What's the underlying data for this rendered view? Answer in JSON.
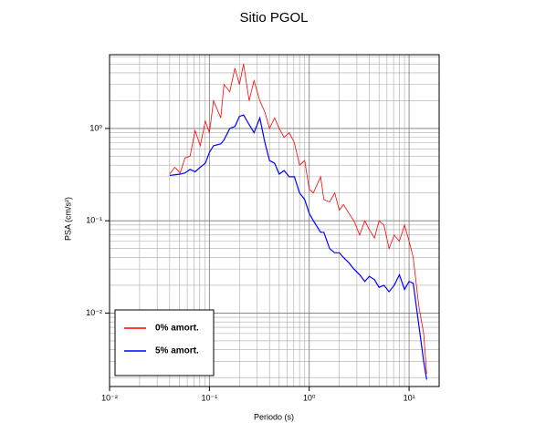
{
  "chart_data": {
    "type": "line",
    "title": "Sitio PGOL",
    "x_label": "Periodo (s)",
    "y_label": "PSA (cm/s²)",
    "xscale": "log",
    "yscale": "log",
    "grid": true,
    "legend": "lower left",
    "xlim": [
      0.01,
      20
    ],
    "ylim": [
      0.0016,
      6.3
    ],
    "xticks": [
      {
        "value": 0.01,
        "label": "10⁻²"
      },
      {
        "value": 0.1,
        "label": "10⁻¹"
      },
      {
        "value": 1,
        "label": "10⁰"
      },
      {
        "value": 10,
        "label": "10¹"
      }
    ],
    "yticks": [
      {
        "value": 0.01,
        "label": "10⁻²"
      },
      {
        "value": 0.1,
        "label": "10⁻¹"
      },
      {
        "value": 1,
        "label": "10⁰"
      }
    ],
    "xminorticks": [
      0.02,
      0.03,
      0.04,
      0.05,
      0.06,
      0.07,
      0.08,
      0.09,
      0.2,
      0.3,
      0.4,
      0.5,
      0.6,
      0.7,
      0.8,
      0.9,
      2,
      3,
      4,
      5,
      6,
      7,
      8,
      9,
      20
    ],
    "yminorticks": [
      0.002,
      0.003,
      0.004,
      0.005,
      0.006,
      0.007,
      0.008,
      0.009,
      0.02,
      0.03,
      0.04,
      0.05,
      0.06,
      0.07,
      0.08,
      0.09,
      0.2,
      0.3,
      0.4,
      0.5,
      0.6,
      0.7,
      0.8,
      0.9,
      2,
      3,
      4,
      5,
      6
    ],
    "x": [
      0.04,
      0.045,
      0.051,
      0.057,
      0.064,
      0.072,
      0.081,
      0.091,
      0.1,
      0.11,
      0.13,
      0.14,
      0.16,
      0.18,
      0.2,
      0.22,
      0.25,
      0.28,
      0.32,
      0.36,
      0.4,
      0.45,
      0.5,
      0.56,
      0.63,
      0.71,
      0.8,
      0.9,
      1.0,
      1.1,
      1.3,
      1.4,
      1.6,
      1.8,
      2.0,
      2.2,
      2.5,
      2.8,
      3.2,
      3.6,
      4.0,
      4.5,
      5.0,
      5.6,
      6.3,
      7.1,
      8.0,
      9.0,
      10,
      11,
      12.5,
      14,
      15
    ],
    "series": [
      {
        "name": "0% amort.",
        "color": "#ff0000",
        "values": [
          0.32,
          0.38,
          0.33,
          0.48,
          0.5,
          0.95,
          0.65,
          1.2,
          0.9,
          2.0,
          1.3,
          3.0,
          2.5,
          4.5,
          3.0,
          5.0,
          2.0,
          3.3,
          2.0,
          1.5,
          1.0,
          1.3,
          1.0,
          0.8,
          0.9,
          0.7,
          0.4,
          0.45,
          0.22,
          0.2,
          0.3,
          0.17,
          0.16,
          0.2,
          0.13,
          0.15,
          0.12,
          0.1,
          0.07,
          0.1,
          0.08,
          0.065,
          0.1,
          0.09,
          0.05,
          0.07,
          0.06,
          0.09,
          0.06,
          0.04,
          0.012,
          0.006,
          0.0022
        ]
      },
      {
        "name": "5% amort.",
        "color": "#0000ff",
        "values": [
          0.31,
          0.315,
          0.32,
          0.33,
          0.36,
          0.34,
          0.38,
          0.42,
          0.55,
          0.65,
          0.68,
          0.75,
          1.0,
          1.05,
          1.35,
          1.4,
          1.1,
          0.9,
          1.3,
          0.7,
          0.45,
          0.42,
          0.32,
          0.35,
          0.3,
          0.3,
          0.2,
          0.17,
          0.12,
          0.1,
          0.075,
          0.075,
          0.05,
          0.045,
          0.045,
          0.04,
          0.035,
          0.03,
          0.026,
          0.022,
          0.025,
          0.023,
          0.019,
          0.02,
          0.017,
          0.02,
          0.026,
          0.018,
          0.022,
          0.021,
          0.0075,
          0.003,
          0.0019
        ]
      }
    ]
  }
}
